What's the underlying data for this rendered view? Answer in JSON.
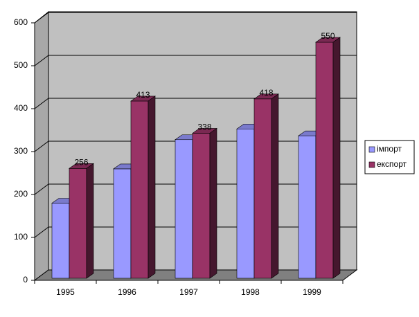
{
  "chart_data": {
    "type": "bar",
    "categories": [
      "1995",
      "1996",
      "1997",
      "1998",
      "1999"
    ],
    "series": [
      {
        "name": "імпорт",
        "color": "#9999ff",
        "values": [
          175,
          255,
          323,
          348,
          332
        ]
      },
      {
        "name": "експорт",
        "color": "#993366",
        "values": [
          256,
          413,
          338,
          418,
          550
        ],
        "show_values": true
      }
    ],
    "ylim": [
      0,
      600
    ],
    "yticks": [
      0,
      100,
      200,
      300,
      400,
      500,
      600
    ],
    "grid": true,
    "legend": "right"
  }
}
